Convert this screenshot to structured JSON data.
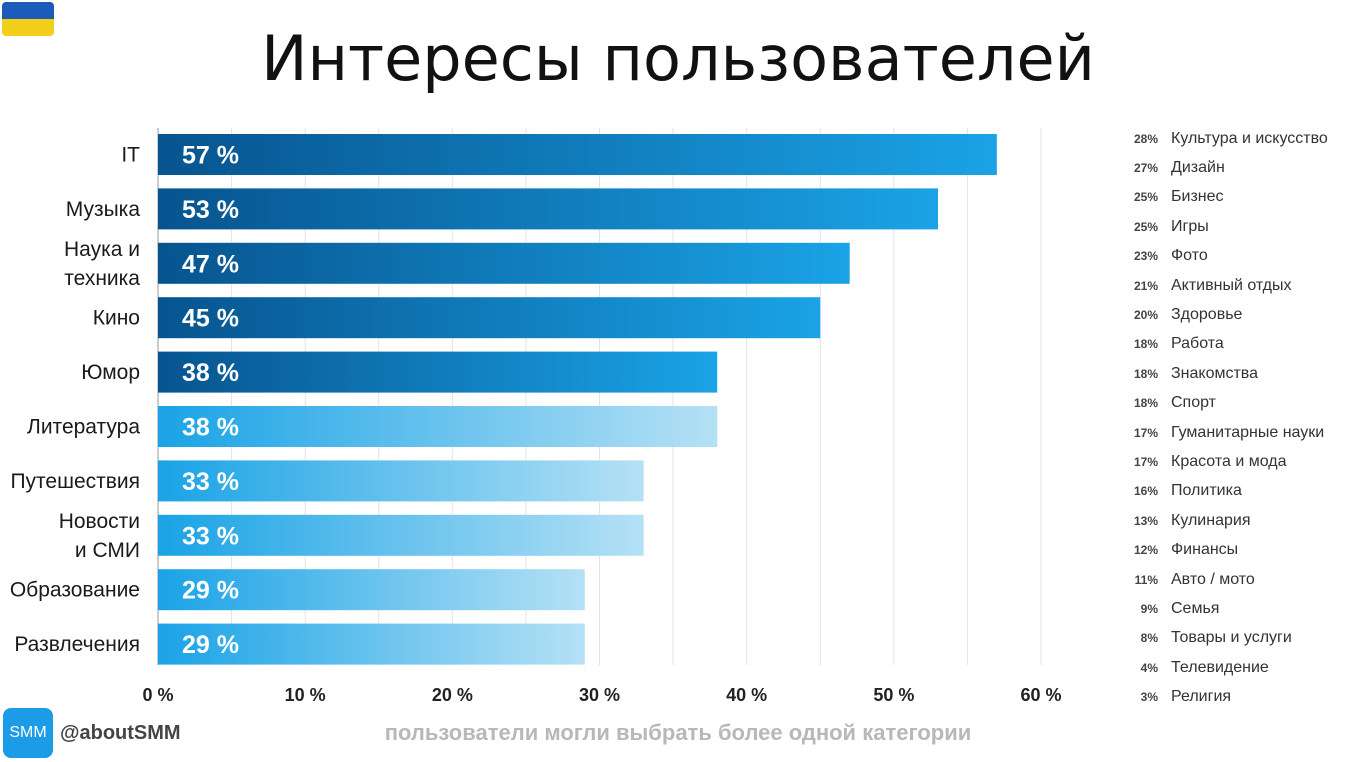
{
  "page": {
    "title": "Интересы пользователей",
    "footnote": "пользователи могли выбрать более одной категории",
    "brand": {
      "badge": "SMM",
      "handle": "@aboutSMM",
      "badge_color": "#1c9be6"
    },
    "flag_colors": [
      "#1d5bb8",
      "#f2cf1a"
    ]
  },
  "chart_data": {
    "type": "bar",
    "orientation": "horizontal",
    "categories": [
      [
        "IT"
      ],
      [
        "Музыка"
      ],
      [
        "Наука и",
        "техника"
      ],
      [
        "Кино"
      ],
      [
        "Юмор"
      ],
      [
        "Литература"
      ],
      [
        "Путешествия"
      ],
      [
        "Новости",
        "и СМИ"
      ],
      [
        "Образование"
      ],
      [
        "Развлечения"
      ]
    ],
    "values": [
      57,
      53,
      47,
      45,
      38,
      38,
      33,
      33,
      29,
      29
    ],
    "value_labels": [
      "57 %",
      "53 %",
      "47 %",
      "45 %",
      "38 %",
      "38 %",
      "33 %",
      "33 %",
      "29 %",
      "29 %"
    ],
    "xlim": [
      0,
      60
    ],
    "x_ticks": [
      0,
      10,
      20,
      30,
      40,
      50,
      60
    ],
    "x_tick_labels": [
      "0 %",
      "10 %",
      "20 %",
      "30 %",
      "40 %",
      "50 %",
      "60 %"
    ],
    "grid": true,
    "colors": {
      "bar_dark": "#07548f",
      "bar_light": "#1aa3e6",
      "bar_pale": "#b5e1f5",
      "grid": "#e3e3e3"
    }
  },
  "legend": [
    {
      "pct": "28%",
      "name": "Культура и искусство"
    },
    {
      "pct": "27%",
      "name": "Дизайн"
    },
    {
      "pct": "25%",
      "name": "Бизнес"
    },
    {
      "pct": "25%",
      "name": "Игры"
    },
    {
      "pct": "23%",
      "name": "Фото"
    },
    {
      "pct": "21%",
      "name": "Активный отдых"
    },
    {
      "pct": "20%",
      "name": "Здоровье"
    },
    {
      "pct": "18%",
      "name": "Работа"
    },
    {
      "pct": "18%",
      "name": "Знакомства"
    },
    {
      "pct": "18%",
      "name": "Спорт"
    },
    {
      "pct": "17%",
      "name": "Гуманитарные науки"
    },
    {
      "pct": "17%",
      "name": "Красота и мода"
    },
    {
      "pct": "16%",
      "name": "Политика"
    },
    {
      "pct": "13%",
      "name": "Кулинария"
    },
    {
      "pct": "12%",
      "name": "Финансы"
    },
    {
      "pct": "11%",
      "name": "Авто / мото"
    },
    {
      "pct": "9%",
      "name": "Семья"
    },
    {
      "pct": "8%",
      "name": "Товары и услуги"
    },
    {
      "pct": "4%",
      "name": "Телевидение"
    },
    {
      "pct": "3%",
      "name": "Религия"
    }
  ]
}
